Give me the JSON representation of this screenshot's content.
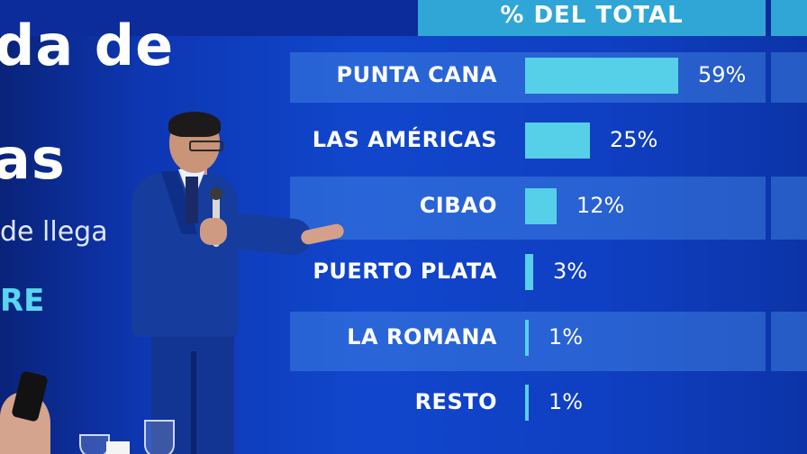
{
  "slide": {
    "left_title_line1": "da de",
    "left_title_line2": "as",
    "left_subtitle": "de llega",
    "left_cutoff": "RE"
  },
  "table": {
    "header": "% DEL TOTAL",
    "rows": [
      {
        "label": "PUNTA CANA",
        "percent": "59%",
        "value": 59
      },
      {
        "label": "LAS AMÉRICAS",
        "percent": "25%",
        "value": 25
      },
      {
        "label": "CIBAO",
        "percent": "12%",
        "value": 12
      },
      {
        "label": "PUERTO PLATA",
        "percent": "3%",
        "value": 3
      },
      {
        "label": "LA ROMANA",
        "percent": "1%",
        "value": 1
      },
      {
        "label": "RESTO",
        "percent": "1%",
        "value": 1
      }
    ]
  },
  "colors": {
    "background": "#1146cc",
    "bar": "#56d0e8",
    "header_box": "#2fa6d6",
    "text": "#ffffff"
  }
}
